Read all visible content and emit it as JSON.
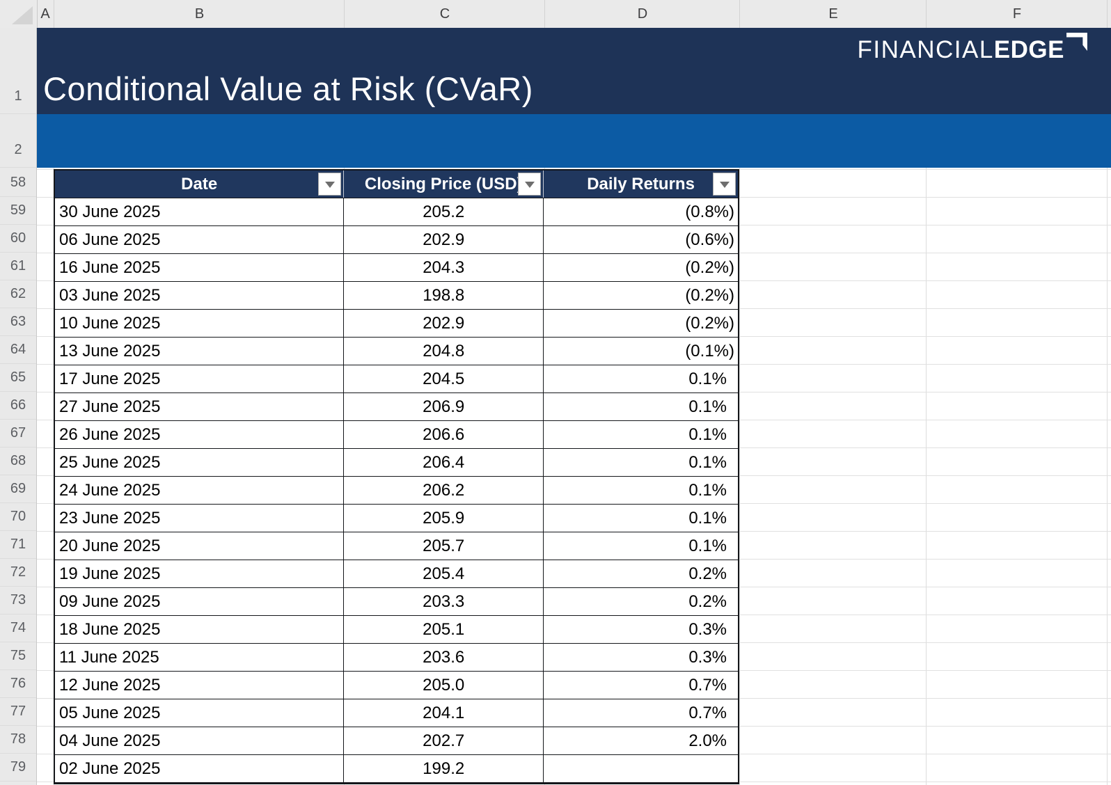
{
  "banner": {
    "title": "Conditional Value at Risk (CVaR)",
    "logo_thin": "FINANCIAL",
    "logo_bold": "EDGE"
  },
  "grid": {
    "column_letters": [
      "A",
      "B",
      "C",
      "D",
      "E",
      "F"
    ],
    "row_numbers": [
      "1",
      "2",
      "58",
      "59",
      "60",
      "61",
      "62",
      "63",
      "64",
      "65",
      "66",
      "67",
      "68",
      "69",
      "70",
      "71",
      "72",
      "73",
      "74",
      "75",
      "76",
      "77",
      "78",
      "79"
    ]
  },
  "table": {
    "columns": [
      {
        "key": "date",
        "label": "Date"
      },
      {
        "key": "closing_price",
        "label": "Closing Price (USD)"
      },
      {
        "key": "daily_returns",
        "label": "Daily Returns"
      }
    ],
    "rows": [
      {
        "date": "30 June 2025",
        "closing_price": "205.2",
        "daily_returns": "(0.8%)"
      },
      {
        "date": "06 June 2025",
        "closing_price": "202.9",
        "daily_returns": "(0.6%)"
      },
      {
        "date": "16 June 2025",
        "closing_price": "204.3",
        "daily_returns": "(0.2%)"
      },
      {
        "date": "03 June 2025",
        "closing_price": "198.8",
        "daily_returns": "(0.2%)"
      },
      {
        "date": "10 June 2025",
        "closing_price": "202.9",
        "daily_returns": "(0.2%)"
      },
      {
        "date": "13 June 2025",
        "closing_price": "204.8",
        "daily_returns": "(0.1%)"
      },
      {
        "date": "17 June 2025",
        "closing_price": "204.5",
        "daily_returns": "0.1%"
      },
      {
        "date": "27 June 2025",
        "closing_price": "206.9",
        "daily_returns": "0.1%"
      },
      {
        "date": "26 June 2025",
        "closing_price": "206.6",
        "daily_returns": "0.1%"
      },
      {
        "date": "25 June 2025",
        "closing_price": "206.4",
        "daily_returns": "0.1%"
      },
      {
        "date": "24 June 2025",
        "closing_price": "206.2",
        "daily_returns": "0.1%"
      },
      {
        "date": "23 June 2025",
        "closing_price": "205.9",
        "daily_returns": "0.1%"
      },
      {
        "date": "20 June 2025",
        "closing_price": "205.7",
        "daily_returns": "0.1%"
      },
      {
        "date": "19 June 2025",
        "closing_price": "205.4",
        "daily_returns": "0.2%"
      },
      {
        "date": "09 June 2025",
        "closing_price": "203.3",
        "daily_returns": "0.2%"
      },
      {
        "date": "18 June 2025",
        "closing_price": "205.1",
        "daily_returns": "0.3%"
      },
      {
        "date": "11 June 2025",
        "closing_price": "203.6",
        "daily_returns": "0.3%"
      },
      {
        "date": "12 June 2025",
        "closing_price": "205.0",
        "daily_returns": "0.7%"
      },
      {
        "date": "05 June 2025",
        "closing_price": "204.1",
        "daily_returns": "0.7%"
      },
      {
        "date": "04 June 2025",
        "closing_price": "202.7",
        "daily_returns": "2.0%"
      },
      {
        "date": "02 June 2025",
        "closing_price": "199.2",
        "daily_returns": ""
      }
    ]
  },
  "colors": {
    "banner_navy": "#1E3357",
    "banner_blue": "#0C5BA4",
    "header_navy": "#20375E",
    "table_border": "#14161A",
    "grid_line": "#DCDCDC"
  }
}
